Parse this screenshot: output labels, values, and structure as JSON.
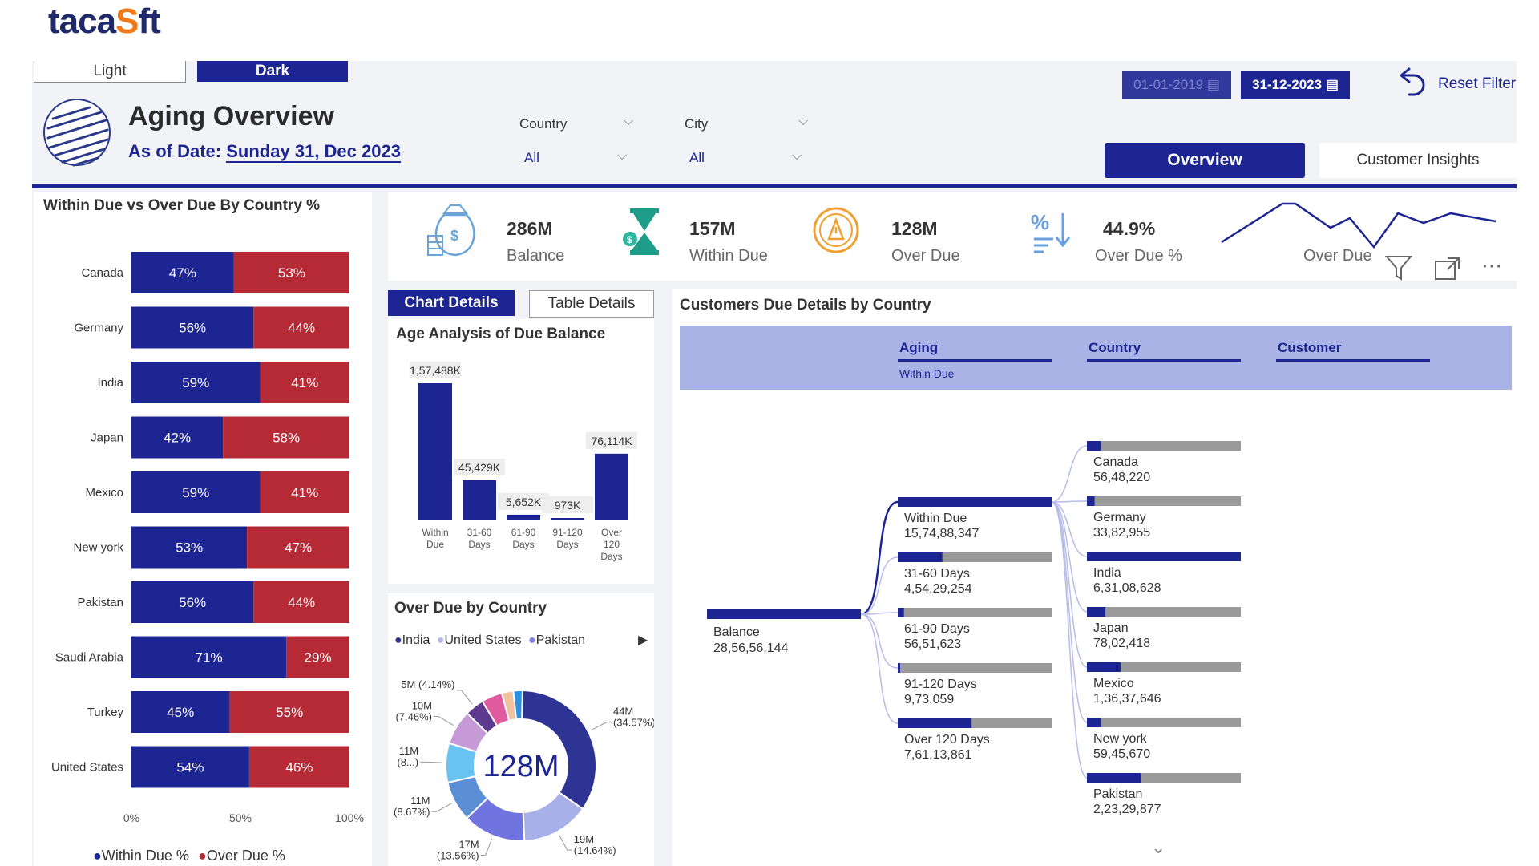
{
  "brand": {
    "logo_a": "taca",
    "logo_o": "S",
    "logo_b": "ft"
  },
  "theme": {
    "light": "Light",
    "dark": "Dark"
  },
  "header": {
    "title": "Aging Overview",
    "subtitle_prefix": "As of Date: ",
    "subtitle_date": "Sunday 31, Dec 2023"
  },
  "filters": {
    "country": {
      "label": "Country",
      "value": "All"
    },
    "city": {
      "label": "City",
      "value": "All"
    }
  },
  "dates": {
    "start": "01-01-2019",
    "end": "31-12-2023"
  },
  "reset_label": "Reset Filter",
  "nav": {
    "overview": "Overview",
    "insights": "Customer Insights"
  },
  "kpis": [
    {
      "value": "286M",
      "label": "Balance",
      "icon": "money-bag-icon"
    },
    {
      "value": "157M",
      "label": "Within Due",
      "icon": "hourglass-icon"
    },
    {
      "value": "128M",
      "label": "Over Due",
      "icon": "clock-alert-icon"
    },
    {
      "value": "44.9%",
      "label": "Over Due %",
      "icon": "percent-sort-icon"
    }
  ],
  "sparkline_label": "Over Due",
  "colors": {
    "primary": "#1c2592",
    "red": "#b52a34",
    "gray": "#9a9a9a",
    "header_band": "#aab3e6"
  },
  "tabs": {
    "chart": "Chart Details",
    "table": "Table Details"
  },
  "country_chart": {
    "title": "Within Due vs Over Due By Country %",
    "legend_within": "Within Due %",
    "legend_over": "Over Due %",
    "ticks": [
      "0%",
      "50%",
      "100%"
    ],
    "chart_data": {
      "type": "bar",
      "orientation": "horizontal-stacked-100",
      "categories": [
        "Canada",
        "Germany",
        "India",
        "Japan",
        "Mexico",
        "New york",
        "Pakistan",
        "Saudi Arabia",
        "Turkey",
        "United States"
      ],
      "series": [
        {
          "name": "Within Due %",
          "values": [
            47,
            56,
            59,
            42,
            59,
            53,
            56,
            71,
            45,
            54
          ]
        },
        {
          "name": "Over Due %",
          "values": [
            53,
            44,
            41,
            58,
            41,
            47,
            44,
            29,
            55,
            46
          ]
        }
      ]
    }
  },
  "age_chart": {
    "title": "Age Analysis of Due Balance",
    "chart_data": {
      "type": "bar",
      "categories": [
        [
          "Within",
          "Due"
        ],
        [
          "31-60",
          "Days"
        ],
        [
          "61-90",
          "Days"
        ],
        [
          "91-120",
          "Days"
        ],
        [
          "Over",
          "120",
          "Days"
        ]
      ],
      "values": [
        157488,
        45429,
        5652,
        973,
        76114
      ],
      "labels": [
        "1,57,488K",
        "45,429K",
        "5,652K",
        "973K",
        "76,114K"
      ]
    }
  },
  "overdue_chart": {
    "title": "Over Due by Country",
    "center_label": "128M",
    "legend": [
      {
        "name": "India",
        "color": "#2d3494"
      },
      {
        "name": "United States",
        "color": "#b3b8e8"
      },
      {
        "name": "Pakistan",
        "color": "#7a7fe0"
      }
    ],
    "chart_data": {
      "type": "pie",
      "slices": [
        {
          "label": "44M (34.57%)",
          "lines": [
            "44M",
            "(34.57%)"
          ],
          "value": 34.57,
          "color": "#2d3494"
        },
        {
          "label": "19M (14.64%)",
          "lines": [
            "19M",
            "(14.64%)"
          ],
          "value": 14.64,
          "color": "#a7b0e8"
        },
        {
          "label": "17M (13.56%)",
          "lines": [
            "17M",
            "(13.56%)"
          ],
          "value": 13.56,
          "color": "#6f74e0"
        },
        {
          "label": "11M (8.67%)",
          "lines": [
            "11M",
            "(8.67%)"
          ],
          "value": 8.67,
          "color": "#5a8fd6"
        },
        {
          "label": "11M (8...)",
          "lines": [
            "11M",
            "(8...)"
          ],
          "value": 8.5,
          "color": "#69c3f0"
        },
        {
          "label": "10M (7.46%)",
          "lines": [
            "10M",
            "(7.46%)"
          ],
          "value": 7.46,
          "color": "#c69ad6"
        },
        {
          "label": "5M (4.14%)",
          "lines": [
            "5M (4.14%)"
          ],
          "value": 4.14,
          "color": "#5d3a8e"
        },
        {
          "label": "",
          "lines": [],
          "value": 4.5,
          "color": "#e05aa0"
        },
        {
          "label": "",
          "lines": [],
          "value": 2.5,
          "color": "#f2c2a0"
        },
        {
          "label": "",
          "lines": [],
          "value": 1.96,
          "color": "#2f8fe0"
        }
      ]
    }
  },
  "tree": {
    "title": "Customers Due Details by Country",
    "headers": [
      {
        "label": "Aging",
        "sub": "Within Due"
      },
      {
        "label": "Country",
        "sub": ""
      },
      {
        "label": "Customer",
        "sub": ""
      }
    ],
    "root": {
      "label": "Balance",
      "value": "28,56,56,144"
    },
    "aging": [
      {
        "label": "Within Due",
        "value": "15,74,88,347",
        "fill": 1.0
      },
      {
        "label": "31-60 Days",
        "value": "4,54,29,254",
        "fill": 0.29
      },
      {
        "label": "61-90 Days",
        "value": "56,51,623",
        "fill": 0.04
      },
      {
        "label": "91-120 Days",
        "value": "9,73,059",
        "fill": 0.0
      },
      {
        "label": "Over 120 Days",
        "value": "7,61,13,861",
        "fill": 0.48
      }
    ],
    "countries": [
      {
        "label": "Canada",
        "value": "56,48,220",
        "fill": 0.09
      },
      {
        "label": "Germany",
        "value": "33,82,955",
        "fill": 0.05
      },
      {
        "label": "India",
        "value": "6,31,08,628",
        "fill": 1.0
      },
      {
        "label": "Japan",
        "value": "78,02,418",
        "fill": 0.12
      },
      {
        "label": "Mexico",
        "value": "1,36,37,646",
        "fill": 0.22
      },
      {
        "label": "New york",
        "value": "59,45,670",
        "fill": 0.09
      },
      {
        "label": "Pakistan",
        "value": "2,23,29,877",
        "fill": 0.35
      }
    ]
  }
}
